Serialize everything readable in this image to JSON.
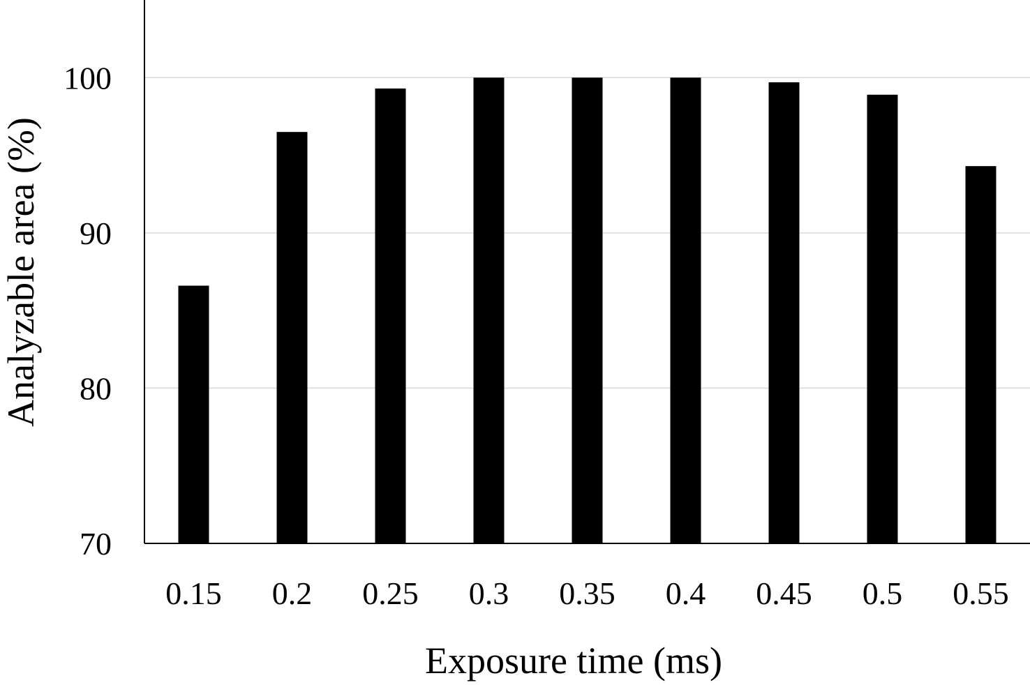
{
  "chart_data": {
    "type": "bar",
    "categories": [
      "0.15",
      "0.2",
      "0.25",
      "0.3",
      "0.35",
      "0.4",
      "0.45",
      "0.5",
      "0.55"
    ],
    "values": [
      86.6,
      96.5,
      99.3,
      100.0,
      100.0,
      100.0,
      99.7,
      98.9,
      94.3
    ],
    "xlabel": "Exposure time (ms)",
    "ylabel": "Analyzable area (%)",
    "ylim": [
      70,
      105
    ],
    "yticks": [
      "70",
      "80",
      "90",
      "100"
    ],
    "grid": true,
    "bar_color": "#000000",
    "grid_color": "#d9d9d9",
    "axis_color": "#000000"
  }
}
